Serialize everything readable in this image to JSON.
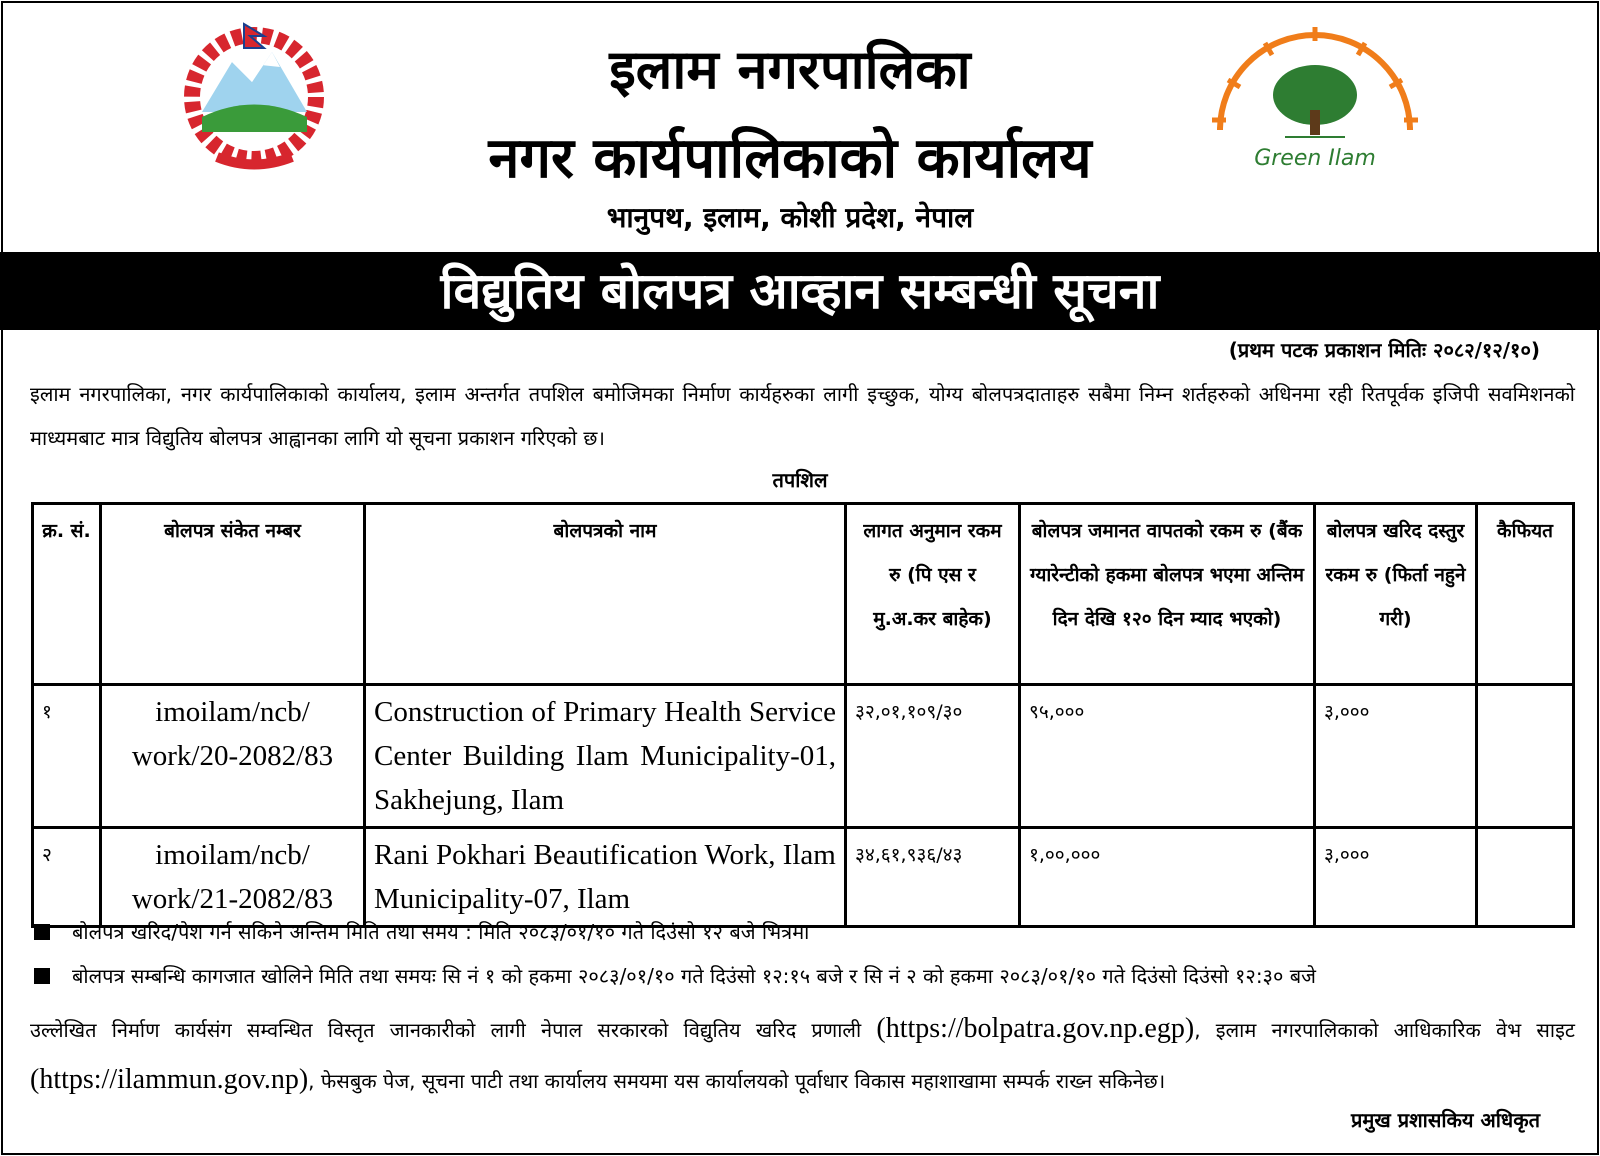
{
  "header": {
    "title_line1": "इलाम नगरपालिका",
    "title_line2": "नगर कार्यपालिकाको कार्यालय",
    "address": "भानुपथ, इलाम, कोशी प्रदेश, नेपाल",
    "logo_right_text": "Green Ilam"
  },
  "banner": "विद्युतिय बोलपत्र आव्हान सम्बन्धी सूचना",
  "publication_date": "(प्रथम पटक प्रकाशन मितिः २०८२/१२/१०)",
  "intro": "इलाम नगरपालिका, नगर कार्यपालिकाको कार्यालय, इलाम अन्तर्गत तपशिल बमोजिमका निर्माण कार्यहरुका लागी इच्छुक, योग्य बोलपत्रदाताहरु सबैमा निम्न शर्तहरुको अधिनमा रही रितपूर्वक इजिपी सवमिशनको माध्यमबाट मात्र विद्युतिय बोलपत्र आह्वानका लागि यो सूचना प्रकाशन गरिएको छ।",
  "schedule_label": "तपशिल",
  "table": {
    "headers": [
      "क्र. सं.",
      "बोलपत्र संकेत नम्बर",
      "बोलपत्रको नाम",
      "लागत अनुमान रकम रु (पि एस र मु.अ.कर बाहेक)",
      "बोलपत्र जमानत वापतको रकम रु (बैंक ग्यारेन्टीको हकमा बोलपत्र भएमा अन्तिम दिन देखि १२० दिन म्याद भएको)",
      "बोलपत्र खरिद दस्तुर रकम रु (फिर्ता नहुने गरी)",
      "कैफियत"
    ],
    "rows": [
      {
        "sn": "१",
        "code": "imoilam/ncb/ work/20-2082/83",
        "name": "Construction of Primary Health Service Center Building Ilam Municipality-01, Sakhejung, Ilam",
        "estimate": "३२,०१,१०९/३०",
        "security": "९५,०००",
        "fee": "३,०००",
        "remarks": ""
      },
      {
        "sn": "२",
        "code": "imoilam/ncb/ work/21-2082/83",
        "name": "Rani Pokhari Beautification Work, Ilam Municipality-07, Ilam",
        "estimate": "३४,६१,९३६/४३",
        "security": "१,००,०००",
        "fee": "३,०००",
        "remarks": ""
      }
    ]
  },
  "bullets": [
    "बोलपत्र खरिद/पेश गर्न सकिने अन्तिम मिति तथा समय : मिति २०८३/०१/१० गते दिउंसो १२ बजे भित्रमा",
    "बोलपत्र सम्बन्धि कागजात खोलिने मिति तथा समयः सि नं १ को हकमा २०८३/०१/१० गते दिउंसो १२:१५ बजे र सि नं २ को हकमा २०८३/०१/१० गते दिउंसो दिउंसो १२:३० बजे"
  ],
  "closing": {
    "part1": "उल्लेखित निर्माण कार्यसंग सम्वन्धित विस्तृत जानकारीको लागी नेपाल सरकारको विद्युतिय खरिद प्रणाली ",
    "url1": "(https://bolpatra.gov.np.egp)",
    "part2": ", इलाम नगरपालिकाको आधिकारिक वेभ साइट ",
    "url2": "(https://ilammun.gov.np)",
    "part3": ", फेसबुक पेज, सूचना पाटी तथा कार्यालय समयमा यस कार्यालयको पूर्वाधार विकास महाशाखामा सम्पर्क राख्न सकिनेछ।"
  },
  "signature": "प्रमुख प्रशासकिय अधिकृत",
  "colors": {
    "banner_bg": "#000000",
    "emblem_red": "#d7262e",
    "logo_orange": "#f07d1a",
    "logo_green": "#2e7d32"
  }
}
